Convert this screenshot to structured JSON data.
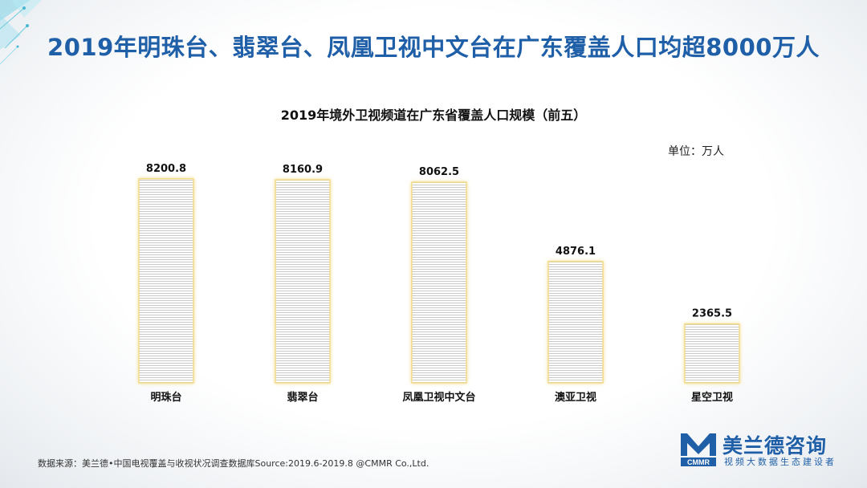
{
  "headline": "2019年明珠台、翡翠台、凤凰卫视中文台在广东覆盖人口均超8000万人",
  "unit_label": "单位：万人",
  "source_note": "数据来源：美兰德•中国电视覆盖与收视状况调查数据库Source:2019.6-2019.8 @CMMR Co.,Ltd.",
  "brand": {
    "name": "美兰德咨询",
    "abbr": "CMMR",
    "tagline": "视频大数据生态建设者",
    "color": "#1f5fa8"
  },
  "colors": {
    "bar_fill": "#ffffff",
    "bar_stripe": "#c9c9c9",
    "bar_glow": "#f2dc8a",
    "headline": "#1f5fa8"
  },
  "chart_data": {
    "type": "bar",
    "title": "2019年境外卫视频道在广东省覆盖人口规模（前五）",
    "categories": [
      "明珠台",
      "翡翠台",
      "凤凰卫视中文台",
      "澳亚卫视",
      "星空卫视"
    ],
    "values": [
      8200.8,
      8160.9,
      8062.5,
      4876.1,
      2365.5
    ],
    "data_labels": [
      "8200.8",
      "8160.9",
      "8062.5",
      "4876.1",
      "2365.5"
    ],
    "xlabel": "",
    "ylabel": "",
    "ylim": [
      0,
      9000
    ],
    "grid": false,
    "legend": "none"
  }
}
